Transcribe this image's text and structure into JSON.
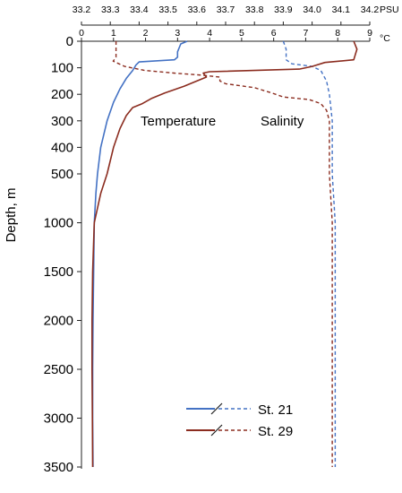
{
  "chart_data": {
    "type": "line",
    "title": "",
    "top_axes": [
      {
        "name": "salinity",
        "unit_label": "PSU",
        "range": [
          33.2,
          34.2
        ],
        "ticks": [
          "33.2",
          "33.3",
          "33.4",
          "33.5",
          "33.6",
          "33.7",
          "33.8",
          "33.9",
          "34.0",
          "34.1",
          "34.2"
        ]
      },
      {
        "name": "temperature",
        "unit_label": "°C",
        "range": [
          0,
          9
        ],
        "ticks": [
          "0",
          "1",
          "2",
          "3",
          "4",
          "5",
          "6",
          "7",
          "8",
          "9"
        ]
      }
    ],
    "y_axis": {
      "label": "Depth, m",
      "segments": [
        {
          "range": [
            0,
            500
          ],
          "ticks": [
            "0",
            "100",
            "200",
            "300",
            "400",
            "500"
          ]
        },
        {
          "range": [
            500,
            3500
          ],
          "ticks": [
            "1000",
            "1500",
            "2000",
            "2500",
            "3000",
            "3500"
          ]
        }
      ]
    },
    "annotations": [
      "Temperature",
      "Salinity"
    ],
    "legend": {
      "placement": "bottom-right",
      "entries": [
        "St. 21",
        "St. 29"
      ]
    },
    "colors": {
      "st21": "#4472c4",
      "st29": "#8b2c1f"
    },
    "series": [
      {
        "name": "St. 21",
        "variable": "temperature",
        "style": "solid",
        "points": [
          [
            3.3,
            0
          ],
          [
            3.1,
            10
          ],
          [
            3.0,
            40
          ],
          [
            3.0,
            60
          ],
          [
            2.9,
            70
          ],
          [
            1.8,
            78
          ],
          [
            1.7,
            90
          ],
          [
            1.6,
            110
          ],
          [
            1.4,
            140
          ],
          [
            1.2,
            180
          ],
          [
            1.0,
            230
          ],
          [
            0.8,
            300
          ],
          [
            0.6,
            400
          ],
          [
            0.5,
            500
          ],
          [
            0.45,
            700
          ],
          [
            0.4,
            1000
          ],
          [
            0.38,
            1500
          ],
          [
            0.36,
            2000
          ],
          [
            0.35,
            2500
          ],
          [
            0.35,
            3000
          ],
          [
            0.36,
            3500
          ]
        ]
      },
      {
        "name": "St. 21",
        "variable": "salinity",
        "style": "dashed",
        "points": [
          [
            33.9,
            0
          ],
          [
            33.91,
            30
          ],
          [
            33.91,
            70
          ],
          [
            33.93,
            85
          ],
          [
            34.0,
            95
          ],
          [
            34.03,
            110
          ],
          [
            34.05,
            150
          ],
          [
            34.06,
            200
          ],
          [
            34.07,
            300
          ],
          [
            34.07,
            400
          ],
          [
            34.07,
            500
          ],
          [
            34.08,
            1000
          ],
          [
            34.08,
            2000
          ],
          [
            34.08,
            3000
          ],
          [
            34.08,
            3500
          ]
        ]
      },
      {
        "name": "St. 29",
        "variable": "temperature",
        "style": "solid",
        "points": [
          [
            8.5,
            0
          ],
          [
            8.6,
            30
          ],
          [
            8.5,
            70
          ],
          [
            7.6,
            80
          ],
          [
            7.2,
            95
          ],
          [
            6.8,
            105
          ],
          [
            4.0,
            115
          ],
          [
            3.8,
            120
          ],
          [
            3.9,
            135
          ],
          [
            3.6,
            150
          ],
          [
            3.2,
            170
          ],
          [
            2.6,
            195
          ],
          [
            2.2,
            215
          ],
          [
            1.9,
            235
          ],
          [
            1.6,
            250
          ],
          [
            1.4,
            280
          ],
          [
            1.2,
            330
          ],
          [
            1.0,
            400
          ],
          [
            0.8,
            500
          ],
          [
            0.6,
            700
          ],
          [
            0.4,
            1000
          ],
          [
            0.35,
            1500
          ],
          [
            0.33,
            2000
          ],
          [
            0.33,
            2500
          ],
          [
            0.34,
            3000
          ],
          [
            0.35,
            3500
          ]
        ]
      },
      {
        "name": "St. 29",
        "variable": "salinity",
        "style": "dashed",
        "points": [
          [
            33.32,
            0
          ],
          [
            33.32,
            60
          ],
          [
            33.31,
            75
          ],
          [
            33.35,
            95
          ],
          [
            33.42,
            110
          ],
          [
            33.52,
            120
          ],
          [
            33.62,
            128
          ],
          [
            33.68,
            135
          ],
          [
            33.68,
            150
          ],
          [
            33.7,
            160
          ],
          [
            33.8,
            175
          ],
          [
            33.86,
            195
          ],
          [
            33.9,
            210
          ],
          [
            33.99,
            220
          ],
          [
            34.03,
            235
          ],
          [
            34.05,
            260
          ],
          [
            34.06,
            300
          ],
          [
            34.06,
            400
          ],
          [
            34.06,
            500
          ],
          [
            34.07,
            1000
          ],
          [
            34.07,
            2000
          ],
          [
            34.07,
            3000
          ],
          [
            34.07,
            3500
          ]
        ]
      }
    ]
  }
}
